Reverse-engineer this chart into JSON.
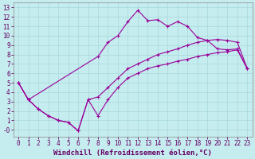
{
  "xlabel": "Windchill (Refroidissement éolien,°C)",
  "bg_color": "#c5ecee",
  "line_color": "#990099",
  "grid_color": "#a8d8da",
  "xlim": [
    -0.5,
    23.5
  ],
  "ylim": [
    -0.7,
    13.5
  ],
  "xticks": [
    0,
    1,
    2,
    3,
    4,
    5,
    6,
    7,
    8,
    9,
    10,
    11,
    12,
    13,
    14,
    15,
    16,
    17,
    18,
    19,
    20,
    21,
    22,
    23
  ],
  "yticks": [
    0,
    1,
    2,
    3,
    4,
    5,
    6,
    7,
    8,
    9,
    10,
    11,
    12,
    13
  ],
  "ytick_labels": [
    "-0",
    "1",
    "2",
    "3",
    "4",
    "5",
    "6",
    "7",
    "8",
    "9",
    "10",
    "11",
    "12",
    "13"
  ],
  "line_upper_x": [
    0,
    1,
    8,
    9,
    10,
    11,
    12,
    13,
    14,
    15,
    16,
    17,
    18,
    19,
    20,
    21,
    22,
    23
  ],
  "line_upper_y": [
    5.0,
    3.2,
    7.8,
    9.3,
    10.0,
    11.5,
    12.7,
    11.6,
    11.7,
    11.0,
    11.5,
    11.0,
    9.8,
    9.5,
    8.6,
    8.5,
    8.6,
    6.5
  ],
  "line_mid_x": [
    0,
    1,
    2,
    3,
    4,
    5,
    6,
    7,
    8,
    9,
    10,
    11,
    12,
    13,
    14,
    15,
    16,
    17,
    18,
    19,
    20,
    21,
    22,
    23
  ],
  "line_mid_y": [
    5.0,
    3.2,
    2.2,
    1.5,
    1.0,
    0.8,
    -0.1,
    3.2,
    3.5,
    4.5,
    5.5,
    6.5,
    7.0,
    7.5,
    8.0,
    8.3,
    8.6,
    9.0,
    9.3,
    9.5,
    9.6,
    9.5,
    9.3,
    6.5
  ],
  "line_lower_x": [
    0,
    1,
    2,
    3,
    4,
    5,
    6,
    7,
    8,
    9,
    10,
    11,
    12,
    13,
    14,
    15,
    16,
    17,
    18,
    19,
    20,
    21,
    22,
    23
  ],
  "line_lower_y": [
    5.0,
    3.2,
    2.2,
    1.5,
    1.0,
    0.8,
    -0.1,
    3.2,
    1.5,
    3.2,
    4.5,
    5.5,
    6.0,
    6.5,
    6.8,
    7.0,
    7.3,
    7.5,
    7.8,
    8.0,
    8.2,
    8.3,
    8.5,
    6.5
  ],
  "font_name": "monospace",
  "axis_fontsize": 5.5,
  "label_fontsize": 6.5
}
